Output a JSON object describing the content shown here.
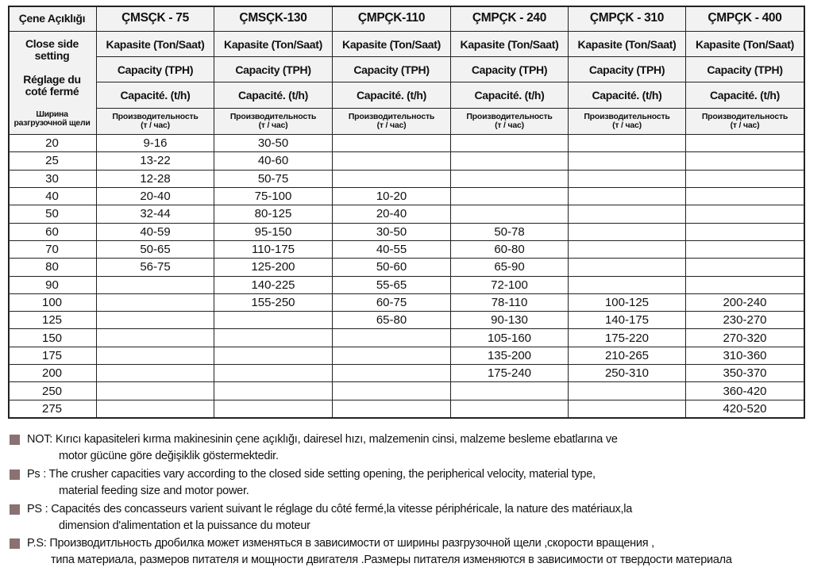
{
  "table": {
    "corner": {
      "title": "Çene Açıklığı",
      "en": [
        "Close side",
        "setting"
      ],
      "fr": [
        "Réglage du",
        "coté fermé"
      ],
      "ru": [
        "Ширина",
        "разгрузочной щели"
      ]
    },
    "columns": [
      {
        "model": "ÇMSÇK - 75",
        "tr": "Kapasite (Ton/Saat)",
        "en": "Capacity (TPH)",
        "fr": "Capacité. (t/h)",
        "ru": [
          "Производительность",
          "(т / час)"
        ]
      },
      {
        "model": "ÇMSÇK-130",
        "tr": "Kapasite (Ton/Saat)",
        "en": "Capacity (TPH)",
        "fr": "Capacité. (t/h)",
        "ru": [
          "Производительность",
          "(т / час)"
        ]
      },
      {
        "model": "ÇMPÇK-110",
        "tr": "Kapasite (Ton/Saat)",
        "en": "Capacity (TPH)",
        "fr": "Capacité. (t/h)",
        "ru": [
          "Производительность",
          "(т / час)"
        ]
      },
      {
        "model": "ÇMPÇK - 240",
        "tr": "Kapasite (Ton/Saat)",
        "en": "Capacity (TPH)",
        "fr": "Capacité. (t/h)",
        "ru": [
          "Производительность",
          "(т / час)"
        ]
      },
      {
        "model": "ÇMPÇK - 310",
        "tr": "Kapasite (Ton/Saat)",
        "en": "Capacity (TPH)",
        "fr": "Capacité. (t/h)",
        "ru": [
          "Производительность",
          "(т / час)"
        ]
      },
      {
        "model": "ÇMPÇK - 400",
        "tr": "Kapasite (Ton/Saat)",
        "en": "Capacity (TPH)",
        "fr": "Capacité. (t/h)",
        "ru": [
          "Производительность",
          "(т / час)"
        ]
      }
    ],
    "rows": [
      {
        "setting": 20,
        "values": [
          "9-16",
          "30-50",
          null,
          null,
          null,
          null
        ]
      },
      {
        "setting": 25,
        "values": [
          "13-22",
          "40-60",
          null,
          null,
          null,
          null
        ]
      },
      {
        "setting": 30,
        "values": [
          "12-28",
          "50-75",
          null,
          null,
          null,
          null
        ]
      },
      {
        "setting": 40,
        "values": [
          "20-40",
          "75-100",
          "10-20",
          null,
          null,
          null
        ]
      },
      {
        "setting": 50,
        "values": [
          "32-44",
          "80-125",
          "20-40",
          null,
          null,
          null
        ]
      },
      {
        "setting": 60,
        "values": [
          "40-59",
          "95-150",
          "30-50",
          "50-78",
          null,
          null
        ]
      },
      {
        "setting": 70,
        "values": [
          "50-65",
          "110-175",
          "40-55",
          "60-80",
          null,
          null
        ]
      },
      {
        "setting": 80,
        "values": [
          "56-75",
          "125-200",
          "50-60",
          "65-90",
          null,
          null
        ]
      },
      {
        "setting": 90,
        "values": [
          null,
          "140-225",
          "55-65",
          "72-100",
          null,
          null
        ]
      },
      {
        "setting": 100,
        "values": [
          null,
          "155-250",
          "60-75",
          "78-110",
          "100-125",
          "200-240"
        ]
      },
      {
        "setting": 125,
        "values": [
          null,
          null,
          "65-80",
          "90-130",
          "140-175",
          "230-270"
        ]
      },
      {
        "setting": 150,
        "values": [
          null,
          null,
          null,
          "105-160",
          "175-220",
          "270-320"
        ]
      },
      {
        "setting": 175,
        "values": [
          null,
          null,
          null,
          "135-200",
          "210-265",
          "310-360"
        ]
      },
      {
        "setting": 200,
        "values": [
          null,
          null,
          null,
          "175-240",
          "250-310",
          "350-370"
        ]
      },
      {
        "setting": 250,
        "values": [
          null,
          null,
          null,
          null,
          null,
          "360-420"
        ]
      },
      {
        "setting": 275,
        "values": [
          null,
          null,
          null,
          null,
          null,
          "420-520"
        ]
      }
    ]
  },
  "notes": [
    {
      "label": "NOT:",
      "lines": [
        "Kırıcı kapasiteleri kırma makinesinin çene açıklığı, dairesel hızı, malzemenin cinsi, malzeme besleme ebatlarına ve",
        "motor gücüne göre değişiklik göstermektedir."
      ]
    },
    {
      "label": "Ps  :",
      "lines": [
        "The crusher capacities vary according to the closed side setting opening, the peripherical velocity, material type,",
        "material feeding size and motor power."
      ]
    },
    {
      "label": "PS :",
      "lines": [
        "Capacités des concasseurs varient suivant le réglage du côté fermé,la vitesse périphéricale, la nature des matériaux,la",
        "dimension d'alimentation  et la puissance du moteur"
      ]
    },
    {
      "label": "P.S:",
      "lines": [
        "Производитльность дробилка может изменяться в зависимости от ширины разгрузочной щели ,скорости вращения ,",
        "типа материала, размеров питателя и мощности двигателя .Размеры питателя изменяются в зависимости от твердости материала"
      ]
    }
  ]
}
